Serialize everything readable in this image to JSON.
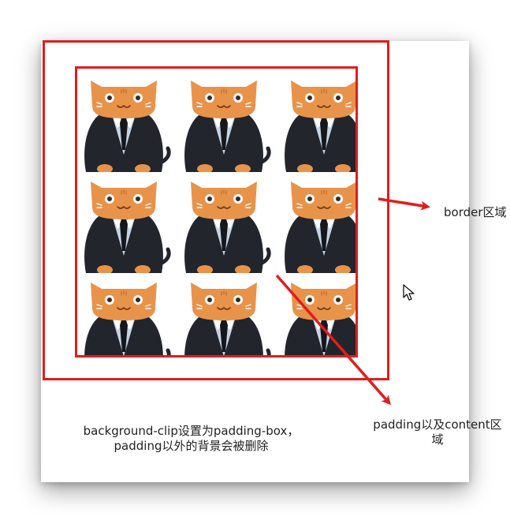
{
  "labels": {
    "border_area": "border区域",
    "padding_content_area_line1": "padding以及content区",
    "padding_content_area_line2": "域"
  },
  "caption": {
    "line1": "background-clip设置为padding-box，",
    "line2": "padding以外的背景会被删除"
  },
  "colors": {
    "highlight_red": "#e11d1d",
    "cat_orange": "#e8934a",
    "suit_dark": "#22252c",
    "shirt_blue": "#c5d3e3"
  },
  "icons": {
    "background_tile": "cat-in-suit-icon",
    "pointer": "mouse-cursor-icon"
  }
}
